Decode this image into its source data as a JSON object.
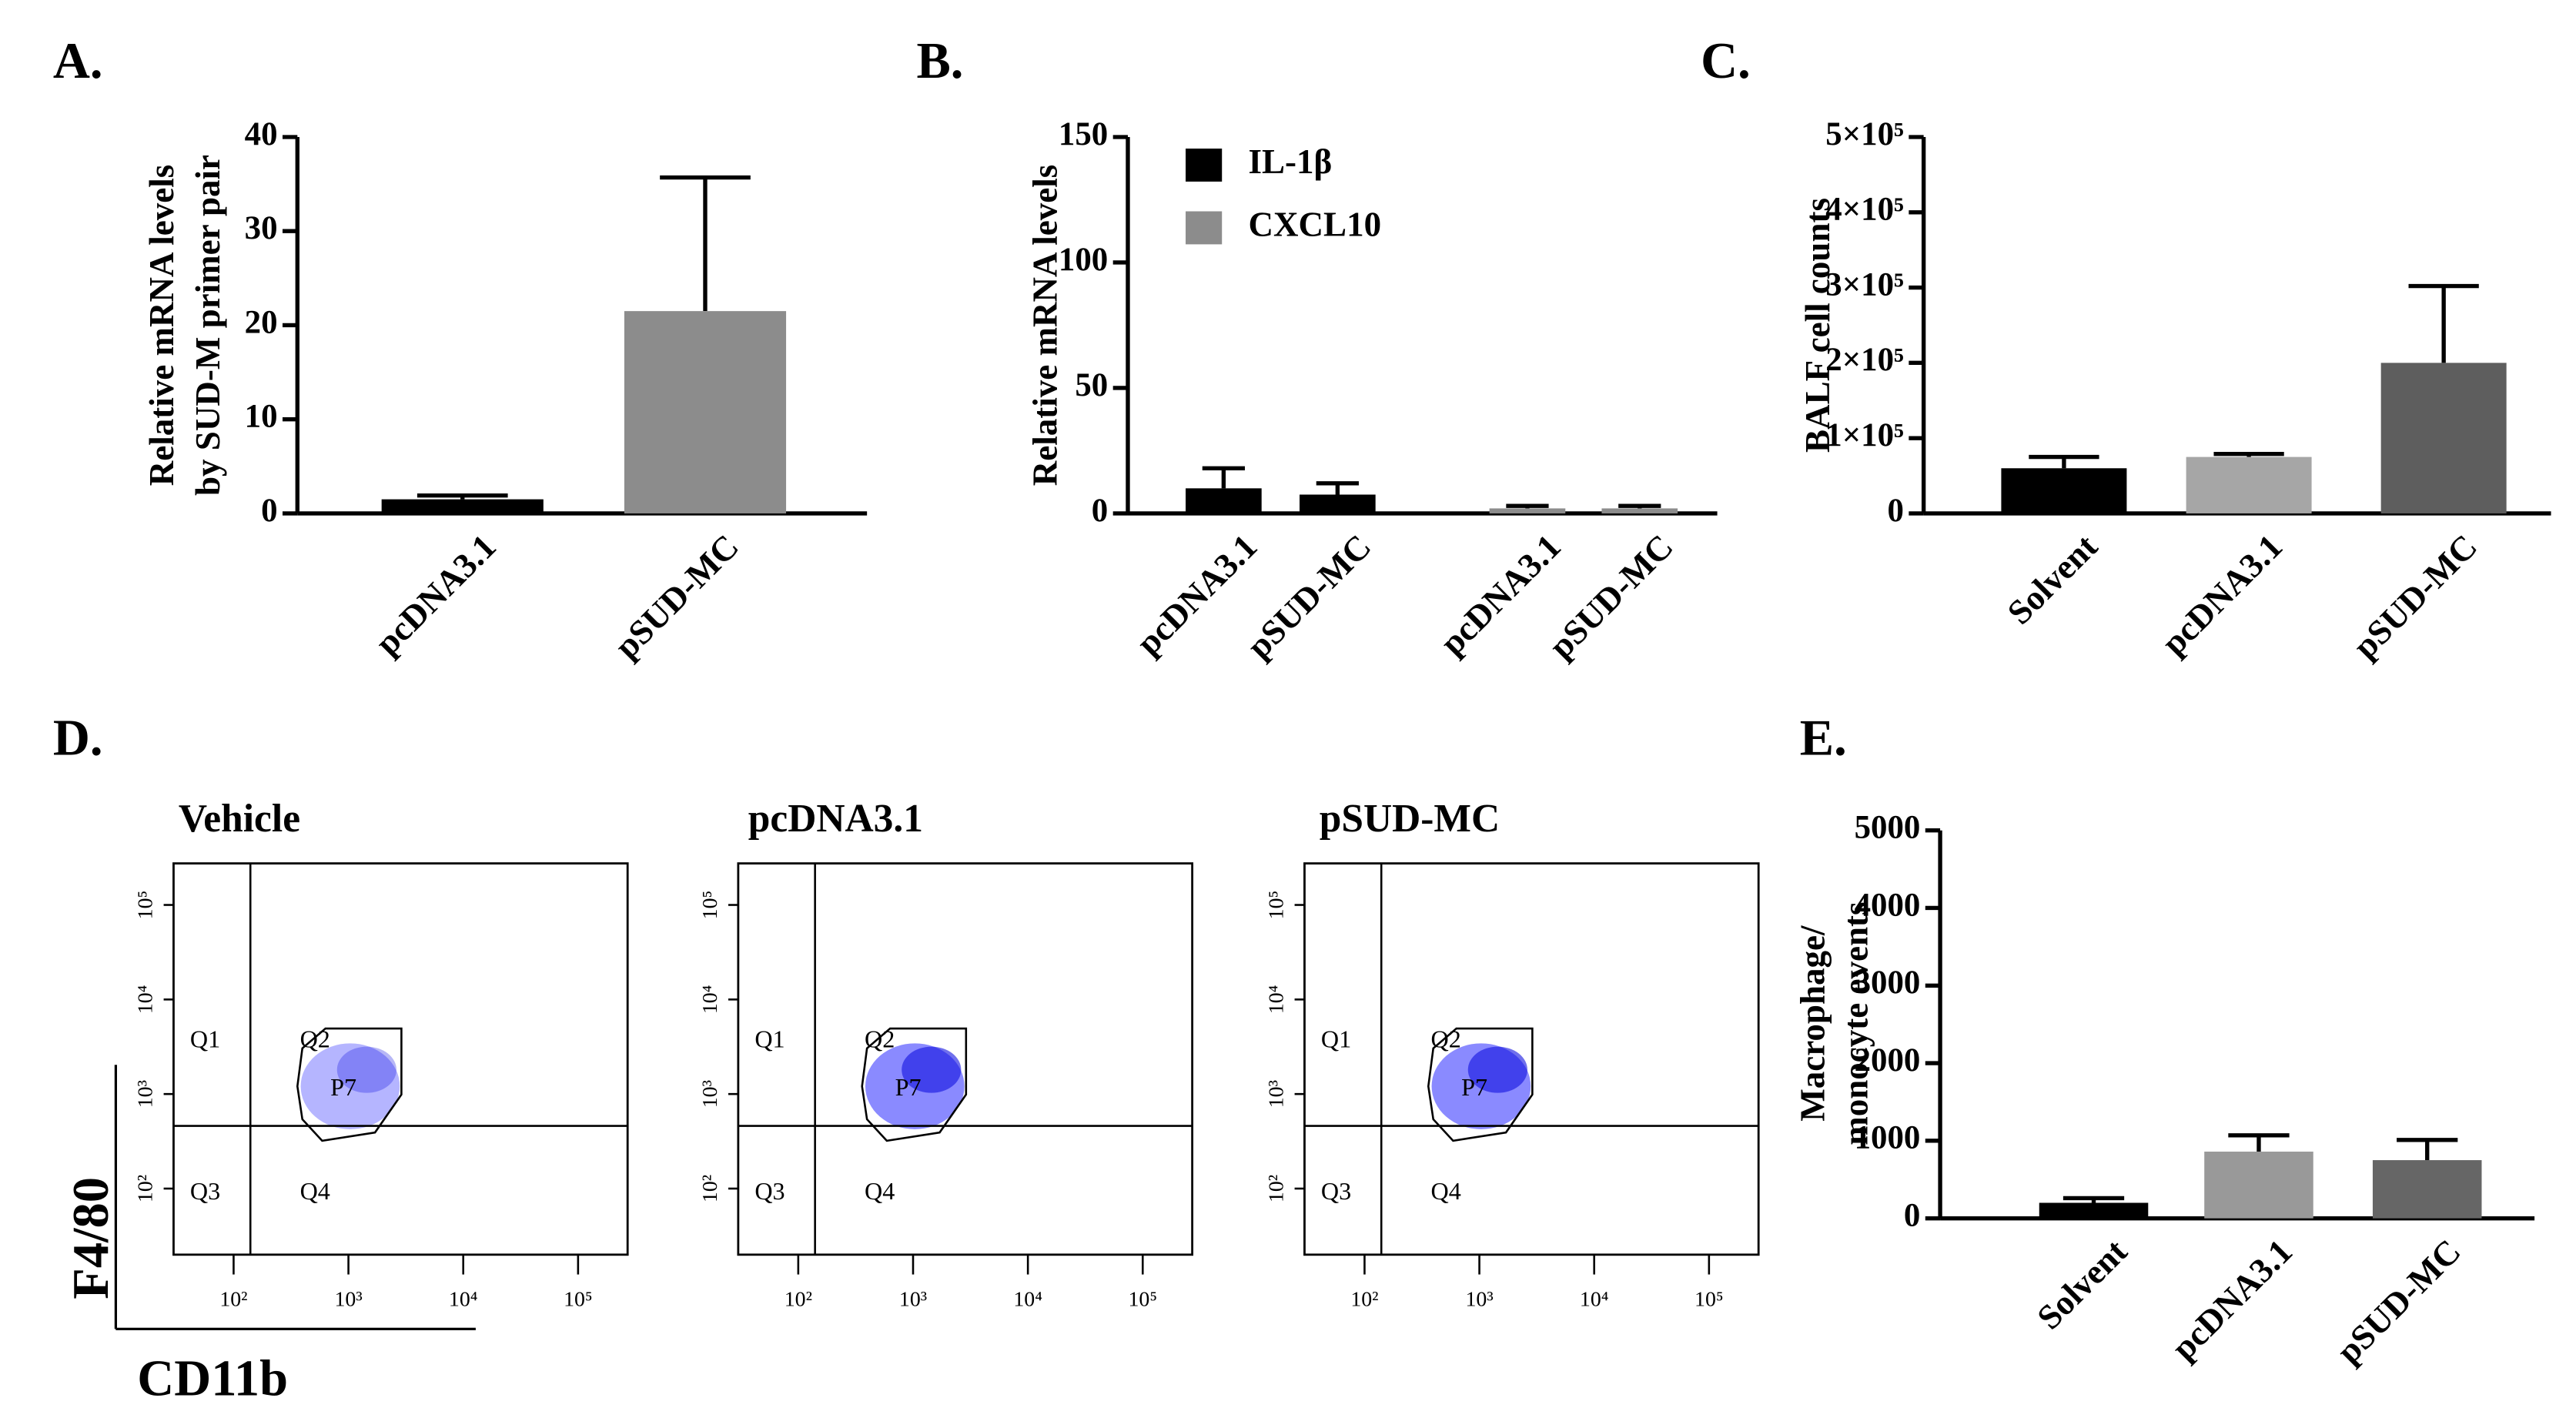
{
  "chart_data": [
    {
      "panel": "A.",
      "type": "bar",
      "ylabel": [
        "Relative mRNA levels",
        "by SUD-M primer pair"
      ],
      "categories": [
        "pcDNA3.1",
        "pSUD-MC"
      ],
      "values": [
        1.5,
        21.5
      ],
      "errors": [
        0.4,
        14.2
      ],
      "colors": [
        "#000000",
        "#8c8c8c"
      ],
      "ylim": [
        0,
        40
      ],
      "yticks": [
        0,
        10,
        20,
        30,
        40
      ]
    },
    {
      "panel": "B.",
      "type": "bar",
      "ylabel": "Relative mRNA levels",
      "categories": [
        "pcDNA3.1",
        "pSUD-MC",
        "pcDNA3.1",
        "pSUD-MC"
      ],
      "series": [
        {
          "name": "IL-1β",
          "color": "#000000",
          "values": [
            10,
            7.5,
            null,
            null
          ],
          "errors": [
            8,
            4.5,
            null,
            null
          ]
        },
        {
          "name": "CXCL10",
          "color": "#8c8c8c",
          "values": [
            null,
            null,
            2,
            2
          ],
          "errors": [
            null,
            null,
            1,
            1
          ]
        }
      ],
      "ylim": [
        0,
        150
      ],
      "yticks": [
        0,
        50,
        100,
        150
      ],
      "legend": "upper left"
    },
    {
      "panel": "C.",
      "type": "bar",
      "ylabel": "BALF cell counts",
      "categories": [
        "Solvent",
        "pcDNA3.1",
        "pSUD-MC"
      ],
      "values": [
        60000,
        75000,
        200000
      ],
      "errors": [
        15000,
        4000,
        102000
      ],
      "colors": [
        "#000000",
        "#a6a6a6",
        "#5e5e5e"
      ],
      "ylim": [
        0,
        500000
      ],
      "yticks": [
        0,
        {
          "value": 100000,
          "label": "1×10⁵"
        },
        {
          "value": 200000,
          "label": "2×10⁵"
        },
        {
          "value": 300000,
          "label": "3×10⁵"
        },
        {
          "value": 400000,
          "label": "4×10⁵"
        },
        {
          "value": 500000,
          "label": "5×10⁵"
        }
      ]
    },
    {
      "panel": "D.",
      "type": "flow",
      "titles": [
        "Vehicle",
        "pcDNA3.1",
        "pSUD-MC"
      ],
      "xlabel": "CD11b",
      "ylabel": "F4/80",
      "quadrants": [
        "Q1",
        "Q2",
        "Q3",
        "Q4"
      ],
      "gate": "P7",
      "xscale": "log",
      "yscale": "log",
      "xlim": [
        30,
        270000
      ],
      "ylim": [
        20,
        275000
      ],
      "xticks": [
        {
          "value": 100,
          "label": "10²"
        },
        {
          "value": 1000,
          "label": "10³"
        },
        {
          "value": 10000,
          "label": "10⁴"
        },
        {
          "value": 100000,
          "label": "10⁵"
        }
      ],
      "yticks": [
        {
          "value": 100,
          "label": "10²"
        },
        {
          "value": 1000,
          "label": "10³"
        },
        {
          "value": 10000,
          "label": "10⁴"
        },
        {
          "value": 100000,
          "label": "10⁵"
        }
      ],
      "xgate": 140,
      "ygate": 460
    },
    {
      "panel": "E.",
      "type": "bar",
      "ylabel": [
        "Macrophage/",
        "monocyte events"
      ],
      "categories": [
        "Solvent",
        "pcDNA3.1",
        "pSUD-MC"
      ],
      "values": [
        200,
        860,
        750
      ],
      "errors": [
        60,
        210,
        260
      ],
      "colors": [
        "#000000",
        "#999999",
        "#666666"
      ],
      "ylim": [
        0,
        5000
      ],
      "yticks": [
        0,
        1000,
        2000,
        3000,
        4000,
        5000
      ]
    }
  ]
}
